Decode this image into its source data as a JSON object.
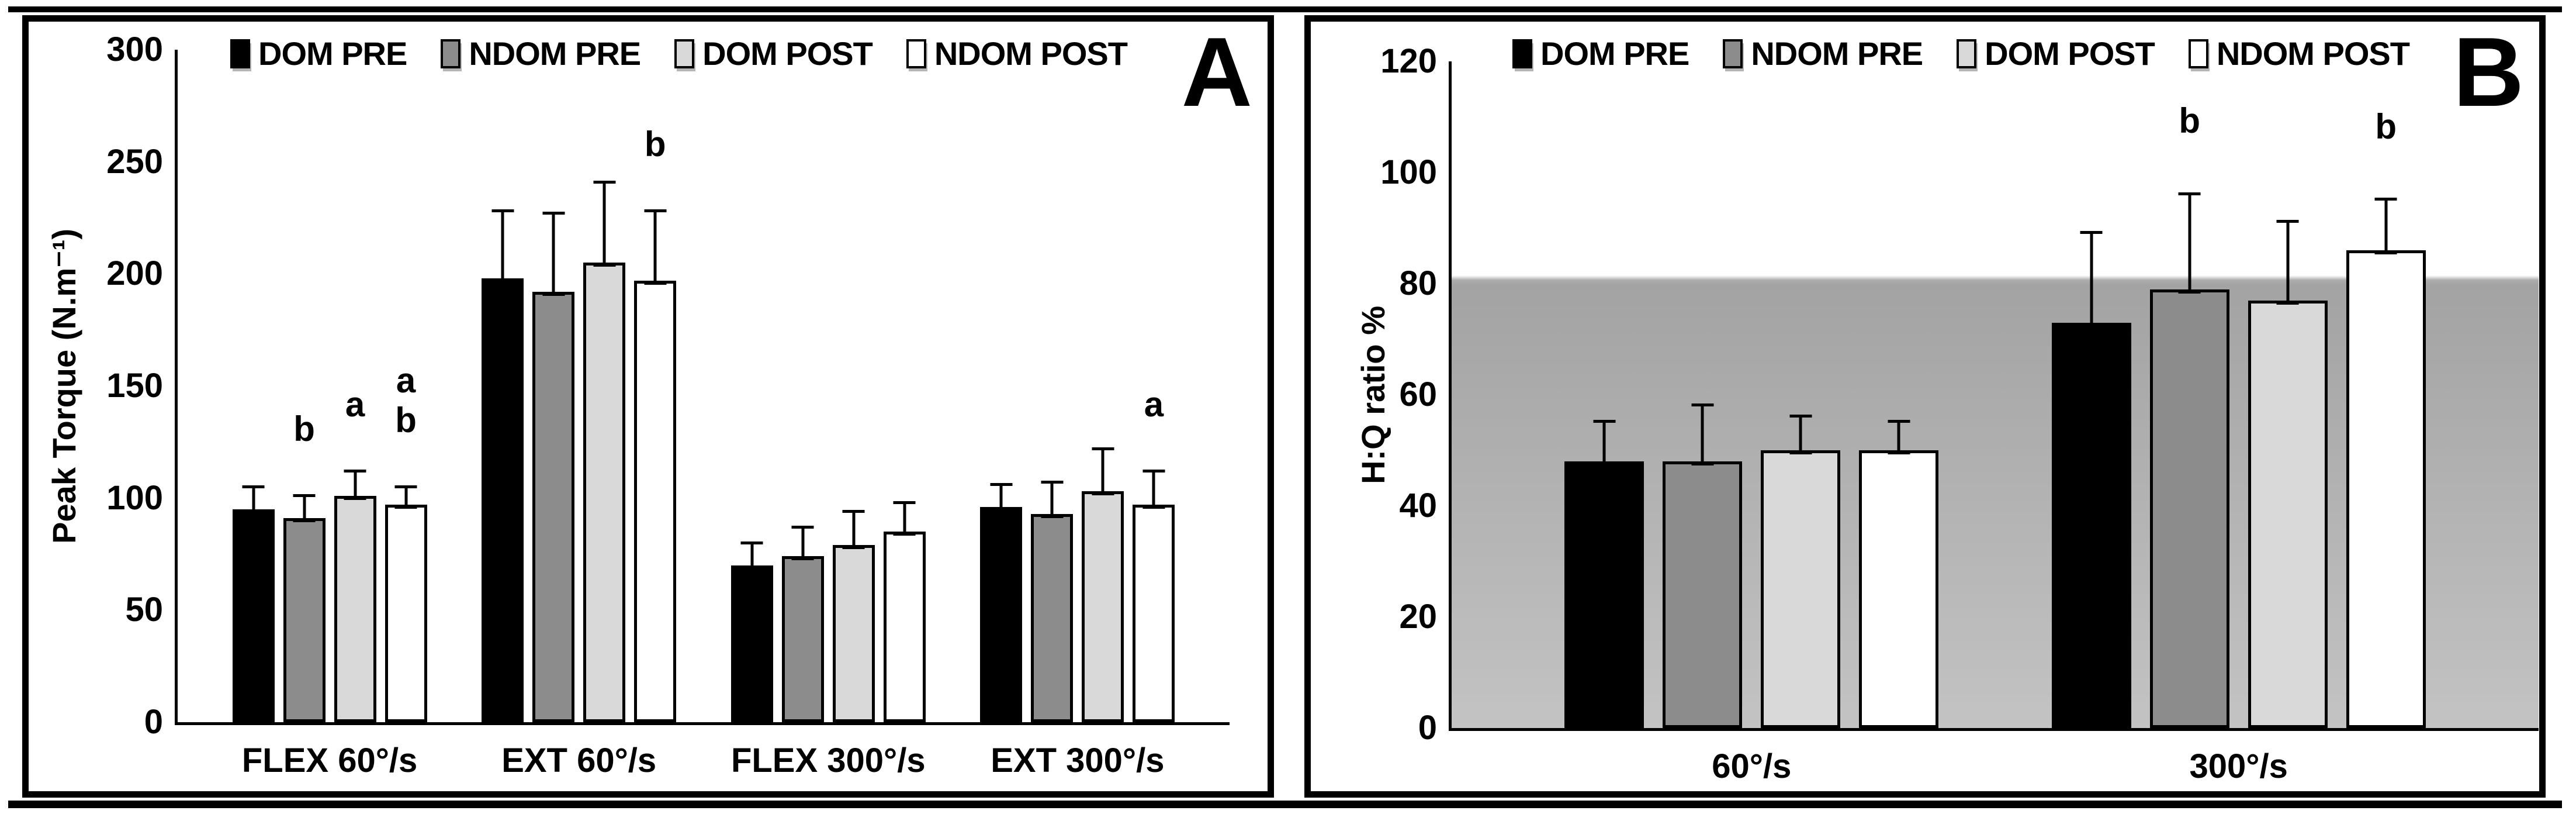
{
  "figure": {
    "panel_count": 2,
    "border_color": "#000000",
    "background": "#ffffff"
  },
  "legend": [
    "DOM PRE",
    "NDOM PRE",
    "DOM POST",
    "NDOM POST"
  ],
  "series_colors": [
    "#000000",
    "#8c8c8c",
    "#d9d9d9",
    "#ffffff"
  ],
  "chart_data": [
    {
      "type": "bar",
      "panel_label": "A",
      "title": "",
      "xlabel": "",
      "ylabel": "Peak Torque (N.m⁻¹)",
      "ylim": [
        0,
        300
      ],
      "yticks": [
        0,
        50,
        100,
        150,
        200,
        250,
        300
      ],
      "grid": false,
      "legend_position": "top",
      "categories": [
        "FLEX 60°/s",
        "EXT 60°/s",
        "FLEX 300°/s",
        "EXT 300°/s"
      ],
      "series": [
        {
          "name": "DOM PRE",
          "color": "#000000",
          "values": [
            95,
            198,
            70,
            96
          ],
          "errors": [
            12,
            32,
            12,
            12
          ]
        },
        {
          "name": "NDOM PRE",
          "color": "#8c8c8c",
          "values": [
            91,
            192,
            74,
            93
          ],
          "errors": [
            12,
            37,
            15,
            16
          ]
        },
        {
          "name": "DOM POST",
          "color": "#d9d9d9",
          "values": [
            101,
            205,
            79,
            103
          ],
          "errors": [
            13,
            38,
            17,
            21
          ]
        },
        {
          "name": "NDOM POST",
          "color": "#ffffff",
          "values": [
            97,
            197,
            85,
            97
          ],
          "errors": [
            10,
            33,
            15,
            17
          ]
        }
      ],
      "annotations": [
        {
          "category": "FLEX 60°/s",
          "series": "NDOM PRE",
          "letters": [
            "b"
          ]
        },
        {
          "category": "FLEX 60°/s",
          "series": "DOM POST",
          "letters": [
            "a"
          ]
        },
        {
          "category": "FLEX 60°/s",
          "series": "NDOM POST",
          "letters": [
            "a",
            "b"
          ]
        },
        {
          "category": "EXT 60°/s",
          "series": "NDOM POST",
          "letters": [
            "b"
          ]
        },
        {
          "category": "EXT 300°/s",
          "series": "NDOM POST",
          "letters": [
            "a"
          ]
        }
      ]
    },
    {
      "type": "bar",
      "panel_label": "B",
      "title": "",
      "xlabel": "",
      "ylabel": "H:Q ratio %",
      "ylim": [
        0,
        120
      ],
      "yticks": [
        0,
        20,
        40,
        60,
        80,
        100,
        120
      ],
      "grid": false,
      "legend_position": "top",
      "categories": [
        "60°/s",
        "300°/s"
      ],
      "series": [
        {
          "name": "DOM PRE",
          "color": "#000000",
          "values": [
            48,
            73
          ],
          "errors": [
            8,
            17
          ]
        },
        {
          "name": "NDOM PRE",
          "color": "#8c8c8c",
          "values": [
            48,
            79
          ],
          "errors": [
            11,
            18
          ]
        },
        {
          "name": "DOM POST",
          "color": "#d9d9d9",
          "values": [
            50,
            77
          ],
          "errors": [
            7,
            15
          ]
        },
        {
          "name": "NDOM POST",
          "color": "#ffffff",
          "values": [
            50,
            86
          ],
          "errors": [
            6,
            10
          ]
        }
      ],
      "reference_band": {
        "from": 0,
        "to": 80,
        "color_top": "#a3a3a3",
        "color_bottom": "#c3c3c3"
      },
      "annotations": [
        {
          "category": "300°/s",
          "series": "NDOM PRE",
          "letters": [
            "b"
          ]
        },
        {
          "category": "300°/s",
          "series": "NDOM POST",
          "letters": [
            "b"
          ]
        }
      ]
    }
  ]
}
